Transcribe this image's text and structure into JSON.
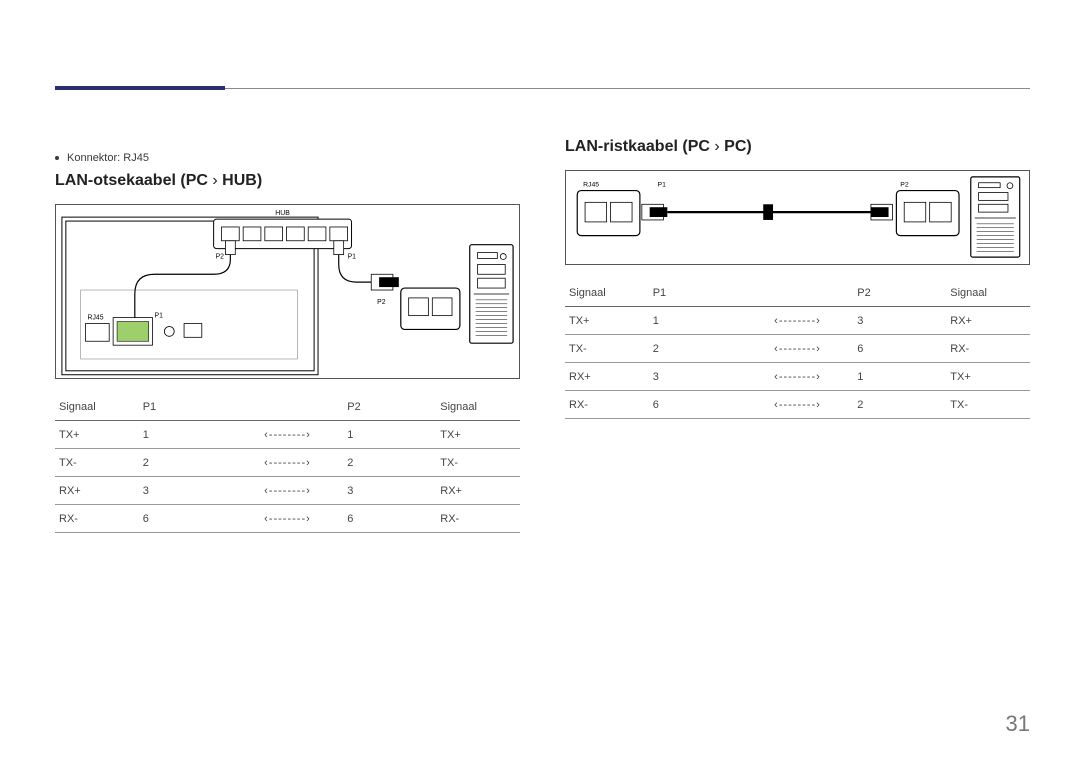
{
  "page_number": "31",
  "connector_note": "Konnektor: RJ45",
  "left": {
    "heading": "LAN-otsekaabel (PC → HUB)",
    "heading_parts": {
      "a": "LAN-otsekaabel (PC",
      "chev": "›",
      "b": "HUB)"
    },
    "diagram": {
      "hub_label": "HUB",
      "p1_label": "P1",
      "p2_label": "P2",
      "rj45_label": "RJ45"
    },
    "table": {
      "columns": [
        "Signaal",
        "P1",
        "",
        "P2",
        "Signaal"
      ],
      "arrow": "‹--------›",
      "rows": [
        {
          "s1": "TX+",
          "p1": "1",
          "p2": "1",
          "s2": "TX+"
        },
        {
          "s1": "TX-",
          "p1": "2",
          "p2": "2",
          "s2": "TX-"
        },
        {
          "s1": "RX+",
          "p1": "3",
          "p2": "3",
          "s2": "RX+"
        },
        {
          "s1": "RX-",
          "p1": "6",
          "p2": "6",
          "s2": "RX-"
        }
      ]
    }
  },
  "right": {
    "heading_parts": {
      "a": "LAN-ristkaabel (PC",
      "chev": "›",
      "b": "PC)"
    },
    "diagram": {
      "rj45_label": "RJ45",
      "p1_label": "P1",
      "p2_label": "P2"
    },
    "table": {
      "columns": [
        "Signaal",
        "P1",
        "",
        "P2",
        "Signaal"
      ],
      "arrow": "‹--------›",
      "rows": [
        {
          "s1": "TX+",
          "p1": "1",
          "p2": "3",
          "s2": "RX+"
        },
        {
          "s1": "TX-",
          "p1": "2",
          "p2": "6",
          "s2": "RX-"
        },
        {
          "s1": "RX+",
          "p1": "3",
          "p2": "1",
          "s2": "TX+"
        },
        {
          "s1": "RX-",
          "p1": "6",
          "p2": "2",
          "s2": "TX-"
        }
      ]
    }
  },
  "style": {
    "accent_color": "#2c2f6e",
    "rule_color": "#8a8a8a",
    "text_color": "#3a3a3a",
    "table_border_color": "#999",
    "green_highlight": "#9dcf6a",
    "col_widths_pct": [
      18,
      20,
      24,
      20,
      18
    ]
  }
}
